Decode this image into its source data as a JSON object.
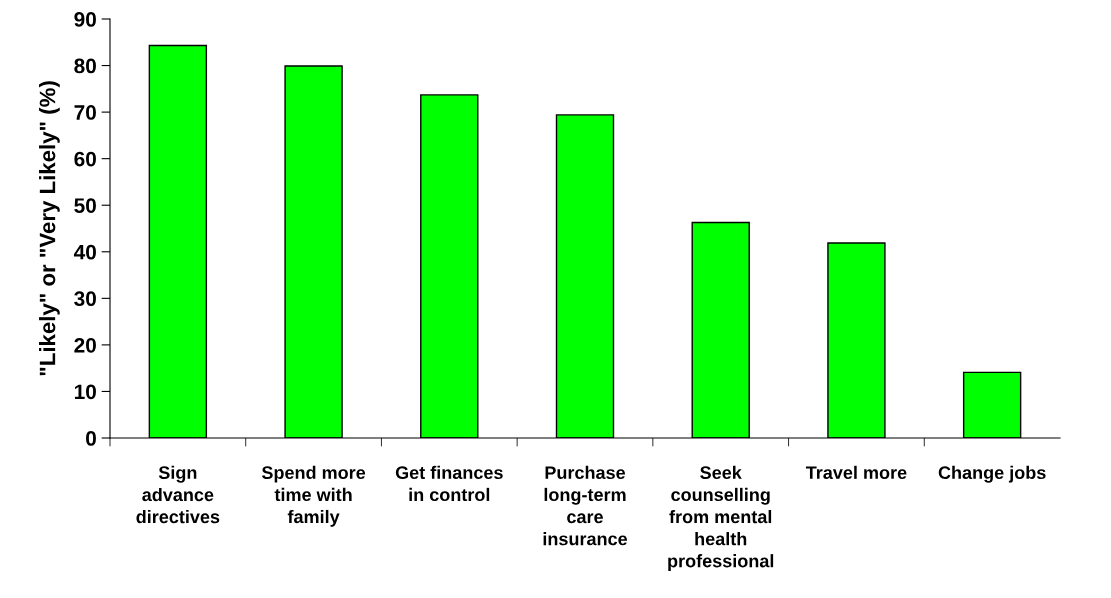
{
  "chart_data": {
    "type": "bar",
    "ylabel": "\"Likely\" or \"Very Likely\" (%)",
    "categories": [
      "Sign\nadvance\ndirectives",
      "Spend more\ntime with\nfamily",
      "Get finances\nin control",
      "Purchase\nlong-term\ncare\ninsurance",
      "Seek\ncounselling\nfrom mental\nhealth\nprofessional",
      "Travel more",
      "Change jobs"
    ],
    "values": [
      84.3,
      79.9,
      73.7,
      69.4,
      46.3,
      41.9,
      14.1
    ],
    "color": "#00ff00",
    "ylim": [
      0,
      90
    ],
    "yticks": [
      0,
      10,
      20,
      30,
      40,
      50,
      60,
      70,
      80,
      90
    ],
    "grid": false
  }
}
